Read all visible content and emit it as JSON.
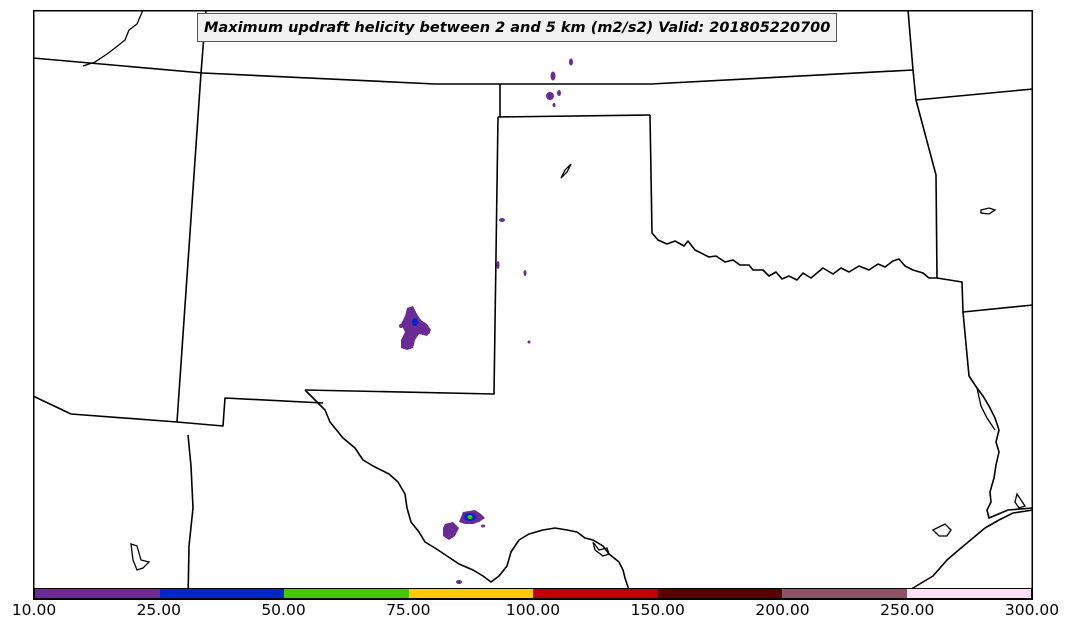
{
  "title": "Maximum updraft helicity between 2 and 5 km (m2/s2) Valid: 201805220700",
  "colorbar": {
    "colors": [
      "#6a2b94",
      "#0028c8",
      "#44c80a",
      "#ffc800",
      "#c00000",
      "#5a0000",
      "#8c5268",
      "#ffe0fa"
    ],
    "ticks": [
      "10.00",
      "25.00",
      "50.00",
      "75.00",
      "100.00",
      "150.00",
      "200.00",
      "250.00",
      "300.00"
    ]
  },
  "style": {
    "line_color": "#000000",
    "frame_color": "#000000"
  }
}
